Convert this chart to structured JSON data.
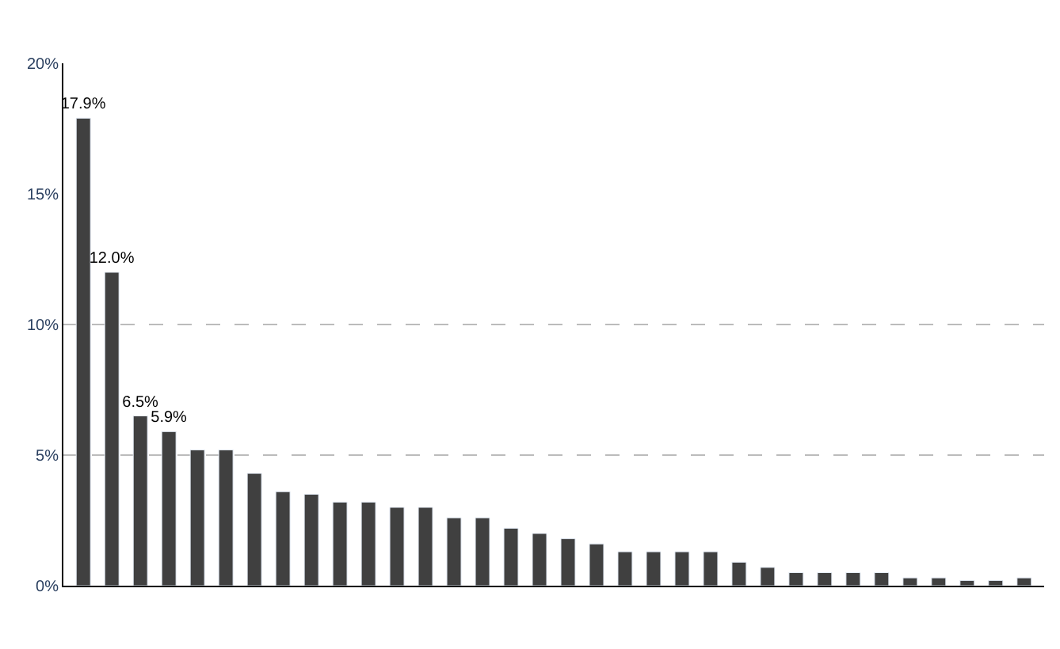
{
  "chart_data": {
    "type": "bar",
    "categories": [
      null,
      null,
      null,
      null,
      null,
      null,
      null,
      null,
      null,
      null,
      null,
      null,
      null,
      null,
      null,
      null,
      null,
      null,
      null,
      null,
      null,
      null,
      null,
      null,
      null,
      null,
      null,
      null,
      null,
      null,
      null,
      null,
      null,
      null
    ],
    "values": [
      17.9,
      12.0,
      6.5,
      5.9,
      5.2,
      5.2,
      4.3,
      3.6,
      3.5,
      3.2,
      3.2,
      3.0,
      3.0,
      2.6,
      2.6,
      2.2,
      2.0,
      1.8,
      1.6,
      1.3,
      1.3,
      1.3,
      1.3,
      0.9,
      0.7,
      0.5,
      0.5,
      0.5,
      0.5,
      0.3,
      0.3,
      0.2,
      0.2,
      0.3
    ],
    "value_labels": [
      "17.9%",
      "12.0%",
      "6.5%",
      "5.9%",
      null,
      null,
      null,
      null,
      null,
      null,
      null,
      null,
      null,
      null,
      null,
      null,
      null,
      null,
      null,
      null,
      null,
      null,
      null,
      null,
      null,
      null,
      null,
      null,
      null,
      null,
      null,
      null,
      null,
      null
    ],
    "color": "#404040",
    "ylim": [
      0,
      20
    ],
    "yticks": [
      {
        "value": 0,
        "label": "0%"
      },
      {
        "value": 5,
        "label": "5%"
      },
      {
        "value": 10,
        "label": "10%"
      },
      {
        "value": 15,
        "label": "15%"
      },
      {
        "value": 20,
        "label": "20%"
      }
    ],
    "ref_lines": [
      {
        "axis": "y",
        "value": 5,
        "color": "#bbbbbb",
        "line_style": "dashed"
      },
      {
        "axis": "y",
        "value": 10,
        "color": "#bbbbbb",
        "line_style": "dashed"
      }
    ],
    "grid": false,
    "legend": false
  }
}
